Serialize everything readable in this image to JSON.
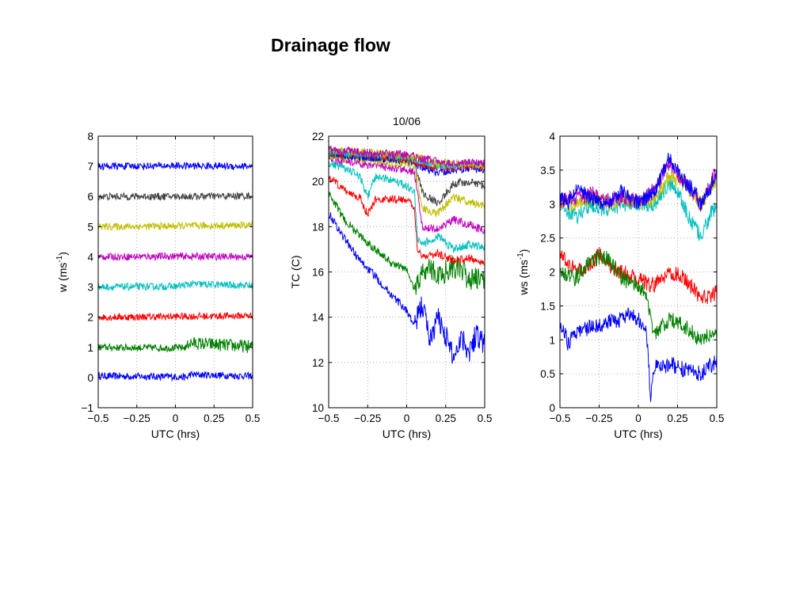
{
  "slide": {
    "title": "Drainage flow"
  },
  "chart_data": [
    {
      "type": "line",
      "title": "",
      "xlabel": "UTC (hrs)",
      "ylabel": "w (ms-1)",
      "ylabel_main": "w (ms",
      "ylabel_sup": "-1",
      "ylabel_close": ")",
      "xlim": [
        -0.5,
        0.5
      ],
      "ylim": [
        -1,
        8
      ],
      "xticks": [
        -0.5,
        -0.25,
        0,
        0.25,
        0.5
      ],
      "xtick_labels": [
        "−0.5",
        "−0.25",
        "0",
        "0.25",
        "0.5"
      ],
      "yticks": [
        -1,
        0,
        1,
        2,
        3,
        4,
        5,
        6,
        7,
        8
      ],
      "ytick_labels": [
        "−1",
        "0",
        "1",
        "2",
        "3",
        "4",
        "5",
        "6",
        "7",
        "8"
      ],
      "grid": true,
      "series": [
        {
          "color": "#0000ff",
          "x": [
            -0.5,
            0.0,
            0.08,
            0.09,
            0.5
          ],
          "y": [
            0.05,
            0.03,
            0.0,
            0.1,
            0.05
          ]
        },
        {
          "color": "#008000",
          "x": [
            -0.5,
            0.0,
            0.07,
            0.08,
            0.5
          ],
          "y": [
            1.0,
            0.98,
            1.0,
            1.15,
            1.02
          ]
        },
        {
          "color": "#ff0000",
          "x": [
            -0.5,
            0.0,
            0.5
          ],
          "y": [
            2.0,
            2.02,
            2.05
          ]
        },
        {
          "color": "#00bfbf",
          "x": [
            -0.5,
            0.0,
            0.1,
            0.5
          ],
          "y": [
            3.0,
            3.02,
            3.1,
            3.05
          ]
        },
        {
          "color": "#bf00bf",
          "x": [
            -0.5,
            0.0,
            0.5
          ],
          "y": [
            4.0,
            4.02,
            4.0
          ]
        },
        {
          "color": "#bfbf00",
          "x": [
            -0.5,
            0.0,
            0.5
          ],
          "y": [
            5.0,
            5.02,
            5.05
          ]
        },
        {
          "color": "#404040",
          "x": [
            -0.5,
            0.0,
            0.5
          ],
          "y": [
            6.0,
            6.0,
            6.02
          ]
        },
        {
          "color": "#0000ff",
          "x": [
            -0.5,
            0.0,
            0.5
          ],
          "y": [
            7.0,
            7.02,
            7.0
          ]
        }
      ]
    },
    {
      "type": "line",
      "title": "10/06",
      "xlabel": "UTC (hrs)",
      "ylabel": "TC (C)",
      "xlim": [
        -0.5,
        0.5
      ],
      "ylim": [
        10,
        22
      ],
      "xticks": [
        -0.5,
        -0.25,
        0,
        0.25,
        0.5
      ],
      "xtick_labels": [
        "−0.5",
        "−0.25",
        "0",
        "0.25",
        "0.5"
      ],
      "yticks": [
        10,
        12,
        14,
        16,
        18,
        20,
        22
      ],
      "ytick_labels": [
        "10",
        "12",
        "14",
        "16",
        "18",
        "20",
        "22"
      ],
      "grid": true,
      "series": [
        {
          "color": "#0000ff",
          "x": [
            -0.5,
            -0.4,
            -0.3,
            -0.2,
            -0.1,
            0.0,
            0.05,
            0.1,
            0.15,
            0.2,
            0.25,
            0.3,
            0.35,
            0.4,
            0.45,
            0.5
          ],
          "y": [
            18.6,
            17.5,
            16.5,
            15.8,
            15.0,
            14.3,
            13.6,
            14.6,
            13.0,
            14.0,
            13.2,
            12.2,
            13.2,
            12.5,
            13.3,
            12.8
          ]
        },
        {
          "color": "#008000",
          "x": [
            -0.5,
            -0.4,
            -0.3,
            -0.2,
            -0.1,
            0.0,
            0.05,
            0.1,
            0.15,
            0.2,
            0.3,
            0.4,
            0.5
          ],
          "y": [
            19.5,
            18.3,
            17.6,
            17.0,
            16.4,
            16.1,
            15.2,
            16.0,
            16.2,
            15.8,
            16.3,
            15.7,
            15.6
          ]
        },
        {
          "color": "#ff0000",
          "x": [
            -0.5,
            -0.4,
            -0.3,
            -0.25,
            -0.2,
            -0.1,
            0.0,
            0.05,
            0.07,
            0.1,
            0.2,
            0.3,
            0.4,
            0.5
          ],
          "y": [
            20.2,
            19.6,
            19.3,
            18.5,
            19.2,
            19.2,
            19.2,
            18.8,
            17.0,
            16.7,
            16.8,
            16.5,
            16.6,
            16.4
          ]
        },
        {
          "color": "#00bfbf",
          "x": [
            -0.5,
            -0.4,
            -0.3,
            -0.25,
            -0.2,
            -0.1,
            0.0,
            0.05,
            0.07,
            0.1,
            0.2,
            0.3,
            0.4,
            0.5
          ],
          "y": [
            20.8,
            20.6,
            20.2,
            19.3,
            20.2,
            20.1,
            19.8,
            19.5,
            17.4,
            17.2,
            17.6,
            17.0,
            17.2,
            17.1
          ]
        },
        {
          "color": "#bf00bf",
          "x": [
            -0.5,
            -0.3,
            -0.2,
            -0.1,
            0.0,
            0.05,
            0.1,
            0.2,
            0.3,
            0.4,
            0.5
          ],
          "y": [
            21.0,
            20.8,
            20.7,
            20.6,
            20.5,
            20.4,
            18.0,
            17.9,
            18.3,
            18.1,
            17.8
          ]
        },
        {
          "color": "#bfbf00",
          "x": [
            -0.5,
            -0.3,
            -0.2,
            -0.1,
            0.0,
            0.05,
            0.1,
            0.2,
            0.3,
            0.4,
            0.5
          ],
          "y": [
            21.1,
            21.0,
            20.9,
            20.8,
            20.8,
            20.7,
            18.8,
            18.6,
            19.3,
            19.1,
            18.9
          ]
        },
        {
          "color": "#404040",
          "x": [
            -0.5,
            -0.3,
            -0.1,
            0.0,
            0.05,
            0.1,
            0.2,
            0.3,
            0.4,
            0.5
          ],
          "y": [
            21.2,
            21.1,
            21.0,
            20.9,
            20.9,
            19.5,
            19.0,
            19.9,
            20.0,
            19.8
          ]
        },
        {
          "color": "#0000ff",
          "x": [
            -0.5,
            -0.3,
            -0.1,
            0.0,
            0.1,
            0.2,
            0.3,
            0.4,
            0.5
          ],
          "y": [
            21.2,
            21.1,
            21.0,
            21.0,
            20.6,
            20.4,
            20.5,
            20.6,
            20.5
          ]
        },
        {
          "color": "#ff0000",
          "x": [
            -0.5,
            -0.3,
            -0.1,
            0.0,
            0.1,
            0.2,
            0.3,
            0.4,
            0.5
          ],
          "y": [
            21.3,
            21.2,
            21.1,
            21.0,
            20.8,
            20.6,
            20.6,
            20.7,
            20.6
          ]
        },
        {
          "color": "#00bfbf",
          "x": [
            -0.5,
            -0.3,
            -0.1,
            0.0,
            0.1,
            0.2,
            0.3,
            0.4,
            0.5
          ],
          "y": [
            21.3,
            21.2,
            21.1,
            21.1,
            20.9,
            20.7,
            20.7,
            20.8,
            20.7
          ]
        },
        {
          "color": "#bfbf00",
          "x": [
            -0.5,
            -0.3,
            -0.1,
            0.0,
            0.1,
            0.2,
            0.3,
            0.4,
            0.5
          ],
          "y": [
            21.4,
            21.3,
            21.2,
            21.1,
            21.0,
            20.8,
            20.8,
            20.8,
            20.7
          ]
        },
        {
          "color": "#bf00bf",
          "x": [
            -0.5,
            -0.3,
            -0.1,
            0.0,
            0.1,
            0.2,
            0.3,
            0.4,
            0.5
          ],
          "y": [
            21.4,
            21.3,
            21.2,
            21.2,
            21.0,
            20.9,
            20.8,
            20.9,
            20.8
          ]
        }
      ]
    },
    {
      "type": "line",
      "title": "",
      "xlabel": "UTC (hrs)",
      "ylabel": "ws (ms-1)",
      "ylabel_main": "ws (ms",
      "ylabel_sup": "-1",
      "ylabel_close": ")",
      "xlim": [
        -0.5,
        0.5
      ],
      "ylim": [
        0,
        4
      ],
      "xticks": [
        -0.5,
        -0.25,
        0,
        0.25,
        0.5
      ],
      "xtick_labels": [
        "−0.5",
        "−0.25",
        "0",
        "0.25",
        "0.5"
      ],
      "yticks": [
        0,
        0.5,
        1,
        1.5,
        2,
        2.5,
        3,
        3.5,
        4
      ],
      "ytick_labels": [
        "0",
        "0.5",
        "1",
        "1.5",
        "2",
        "2.5",
        "3",
        "3.5",
        "4"
      ],
      "grid": true,
      "series": [
        {
          "color": "#00bfbf",
          "x": [
            -0.5,
            -0.4,
            -0.3,
            -0.2,
            -0.1,
            0.0,
            0.1,
            0.2,
            0.25,
            0.3,
            0.35,
            0.4,
            0.45,
            0.5
          ],
          "y": [
            3.0,
            2.8,
            3.0,
            2.9,
            3.0,
            3.0,
            3.0,
            3.3,
            3.2,
            2.9,
            2.7,
            2.5,
            2.8,
            3.0
          ]
        },
        {
          "color": "#bfbf00",
          "x": [
            -0.5,
            -0.4,
            -0.3,
            -0.2,
            -0.1,
            0.0,
            0.1,
            0.2,
            0.3,
            0.4,
            0.5
          ],
          "y": [
            3.0,
            3.0,
            3.1,
            3.0,
            3.1,
            3.0,
            3.1,
            3.4,
            3.3,
            3.0,
            3.4
          ]
        },
        {
          "color": "#bf00bf",
          "x": [
            -0.5,
            -0.4,
            -0.3,
            -0.2,
            -0.1,
            0.0,
            0.1,
            0.2,
            0.3,
            0.4,
            0.5
          ],
          "y": [
            3.05,
            3.1,
            3.15,
            3.05,
            3.1,
            3.05,
            3.2,
            3.6,
            3.3,
            3.0,
            3.5
          ]
        },
        {
          "color": "#0000ff",
          "x": [
            -0.5,
            -0.45,
            -0.4,
            -0.3,
            -0.2,
            -0.1,
            0.0,
            0.1,
            0.15,
            0.2,
            0.25,
            0.3,
            0.35,
            0.4,
            0.45,
            0.5
          ],
          "y": [
            3.1,
            3.0,
            3.2,
            3.1,
            3.0,
            3.2,
            3.0,
            3.2,
            3.4,
            3.7,
            3.5,
            3.3,
            3.2,
            3.0,
            3.2,
            3.5
          ]
        },
        {
          "color": "#ff0000",
          "x": [
            -0.5,
            -0.4,
            -0.3,
            -0.25,
            -0.2,
            -0.1,
            0.0,
            0.1,
            0.2,
            0.3,
            0.4,
            0.5
          ],
          "y": [
            2.3,
            2.0,
            2.1,
            2.3,
            2.1,
            2.0,
            1.9,
            1.8,
            2.0,
            1.9,
            1.6,
            1.7
          ]
        },
        {
          "color": "#008000",
          "x": [
            -0.5,
            -0.4,
            -0.3,
            -0.2,
            -0.1,
            0.0,
            0.05,
            0.1,
            0.15,
            0.2,
            0.3,
            0.4,
            0.5
          ],
          "y": [
            2.0,
            1.9,
            2.2,
            2.2,
            1.9,
            1.8,
            1.7,
            1.1,
            1.2,
            1.3,
            1.2,
            1.0,
            1.1
          ]
        },
        {
          "color": "#0000ff",
          "x": [
            -0.5,
            -0.45,
            -0.4,
            -0.3,
            -0.2,
            -0.1,
            -0.05,
            0.0,
            0.05,
            0.08,
            0.1,
            0.15,
            0.2,
            0.3,
            0.4,
            0.5
          ],
          "y": [
            1.3,
            0.95,
            1.1,
            1.2,
            1.25,
            1.3,
            1.4,
            1.3,
            1.2,
            0.1,
            0.6,
            0.6,
            0.65,
            0.55,
            0.5,
            0.7
          ]
        }
      ]
    }
  ]
}
